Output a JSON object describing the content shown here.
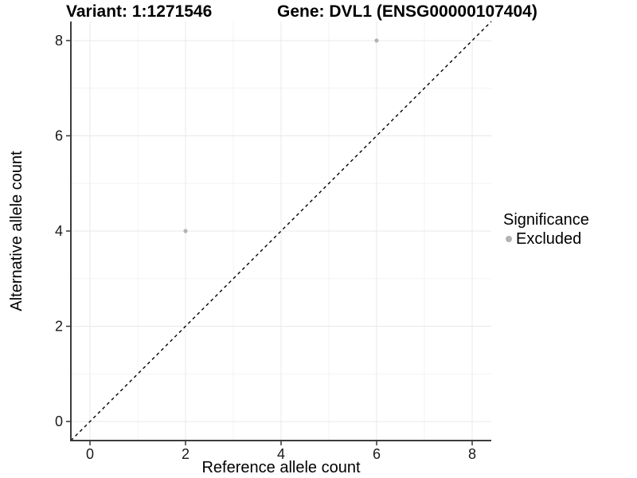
{
  "titles": {
    "variant": "Variant: 1:1271546",
    "gene": "Gene: DVL1 (ENSG00000107404)"
  },
  "axes": {
    "x_label": "Reference allele count",
    "y_label": "Alternative allele count"
  },
  "legend": {
    "title": "Significance",
    "items": [
      {
        "label": "Excluded",
        "color": "#b3b3b3",
        "marker": "circle-icon"
      }
    ]
  },
  "colors": {
    "background": "#ffffff",
    "grid_major": "#e9e9e9",
    "grid_minor": "#f3f3f3",
    "axis_line": "#3c3c3c",
    "tick_mark": "#333333",
    "tick_label": "#1a1a1a",
    "point": "#b3b3b3",
    "reference_line": "#000000"
  },
  "chart_data": {
    "type": "scatter",
    "title": "Variant: 1:1271546    Gene: DVL1 (ENSG00000107404)",
    "xlabel": "Reference allele count",
    "ylabel": "Alternative allele count",
    "xlim": [
      -0.4,
      8.4
    ],
    "ylim": [
      -0.4,
      8.4
    ],
    "xticks": [
      0,
      2,
      4,
      6,
      8
    ],
    "yticks": [
      0,
      2,
      4,
      6,
      8
    ],
    "minor_xticks": [
      1,
      3,
      5,
      7
    ],
    "minor_yticks": [
      1,
      3,
      5,
      7
    ],
    "grid": true,
    "legend_position": "right",
    "series": [
      {
        "name": "Excluded",
        "color": "#b3b3b3",
        "points": [
          {
            "x": 2,
            "y": 4
          },
          {
            "x": 6,
            "y": 8
          }
        ]
      }
    ],
    "reference_line": {
      "type": "identity",
      "from": [
        -0.4,
        -0.4
      ],
      "to": [
        8.4,
        8.4
      ],
      "style": "dashed",
      "color": "#000000"
    }
  }
}
